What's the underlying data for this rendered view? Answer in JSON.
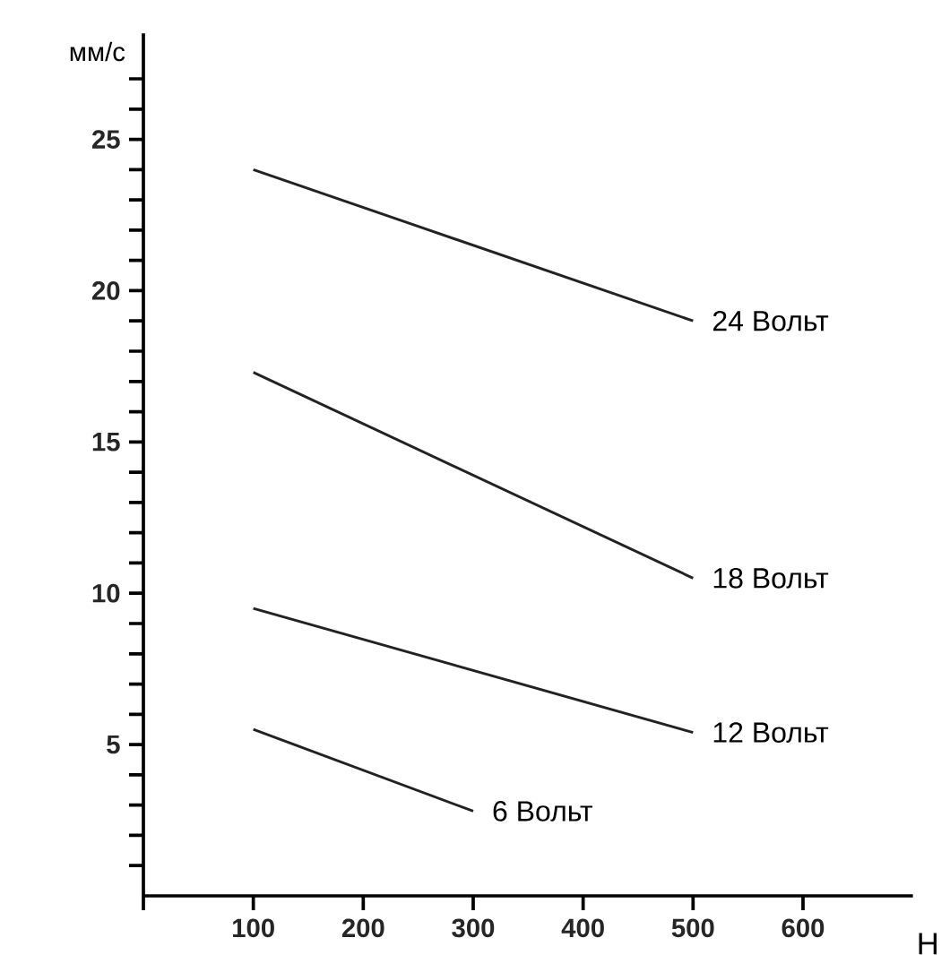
{
  "chart_data": {
    "type": "line",
    "xlabel": "Н",
    "ylabel": "мм/с",
    "xlim": [
      0,
      700
    ],
    "ylim": [
      0,
      28.5
    ],
    "xticks": [
      {
        "value": 0,
        "label": null
      },
      100,
      200,
      300,
      400,
      500,
      600
    ],
    "yticks": [
      {
        "value": 1,
        "label": null
      },
      {
        "value": 2,
        "label": null
      },
      {
        "value": 3,
        "label": null
      },
      {
        "value": 4,
        "label": null
      },
      5,
      {
        "value": 6,
        "label": null
      },
      {
        "value": 7,
        "label": null
      },
      {
        "value": 8,
        "label": null
      },
      {
        "value": 9,
        "label": null
      },
      10,
      {
        "value": 11,
        "label": null
      },
      {
        "value": 12,
        "label": null
      },
      {
        "value": 13,
        "label": null
      },
      {
        "value": 14,
        "label": null
      },
      15,
      {
        "value": 16,
        "label": null
      },
      {
        "value": 17,
        "label": null
      },
      {
        "value": 18,
        "label": null
      },
      {
        "value": 19,
        "label": null
      },
      20,
      {
        "value": 21,
        "label": null
      },
      {
        "value": 22,
        "label": null
      },
      {
        "value": 23,
        "label": null
      },
      {
        "value": 24,
        "label": null
      },
      25,
      {
        "value": 26,
        "label": null
      },
      {
        "value": 27,
        "label": null
      }
    ],
    "marker": "none",
    "line_style": "solid",
    "legend": false,
    "grid": false,
    "series": [
      {
        "name": "24 Вольт",
        "color": "#222222",
        "x": [
          100,
          500
        ],
        "values": [
          24,
          19
        ]
      },
      {
        "name": "18 Вольт",
        "color": "#222222",
        "x": [
          100,
          500
        ],
        "values": [
          17.3,
          10.5
        ]
      },
      {
        "name": "12 Вольт",
        "color": "#222222",
        "x": [
          100,
          500
        ],
        "values": [
          9.5,
          5.4
        ]
      },
      {
        "name": "6 Вольт",
        "color": "#222222",
        "x": [
          100,
          300
        ],
        "values": [
          5.5,
          2.8
        ]
      }
    ]
  }
}
